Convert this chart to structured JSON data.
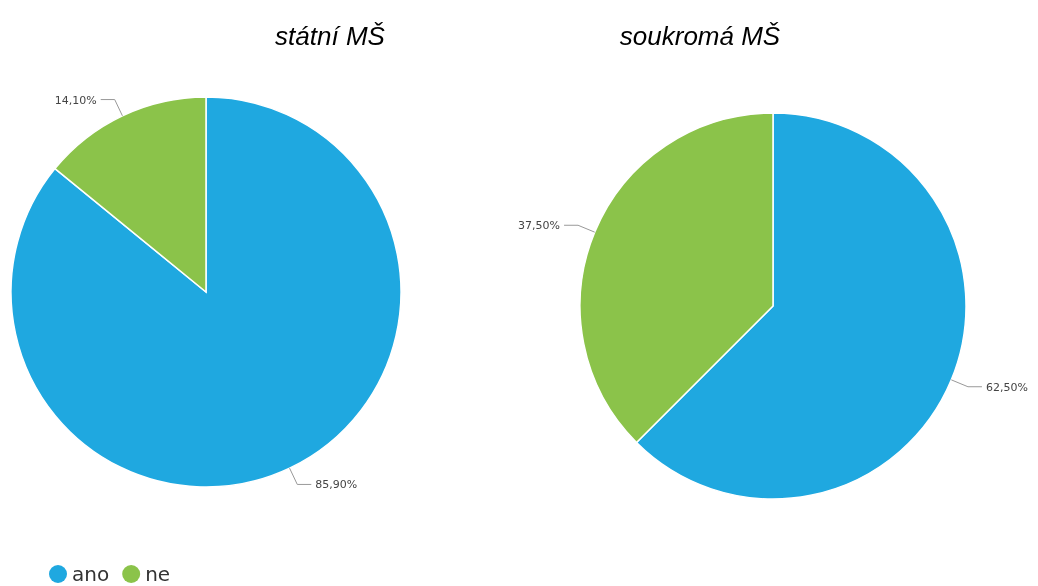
{
  "chart_data": [
    {
      "type": "pie",
      "title": "státní MŠ",
      "categories": [
        "ano",
        "ne"
      ],
      "values": [
        85.9,
        14.1
      ],
      "colors": [
        "#1fa8e0",
        "#8bc34a"
      ],
      "value_labels": [
        "85,90%",
        "14,10%"
      ],
      "legend": "bottom left"
    },
    {
      "type": "pie",
      "title": "soukromá MŠ",
      "categories": [
        null,
        null
      ],
      "values": [
        62.5,
        37.5
      ],
      "colors": [
        "#1fa8e0",
        "#8bc34a"
      ],
      "value_labels": [
        "62,50%",
        "37,50%"
      ]
    }
  ]
}
